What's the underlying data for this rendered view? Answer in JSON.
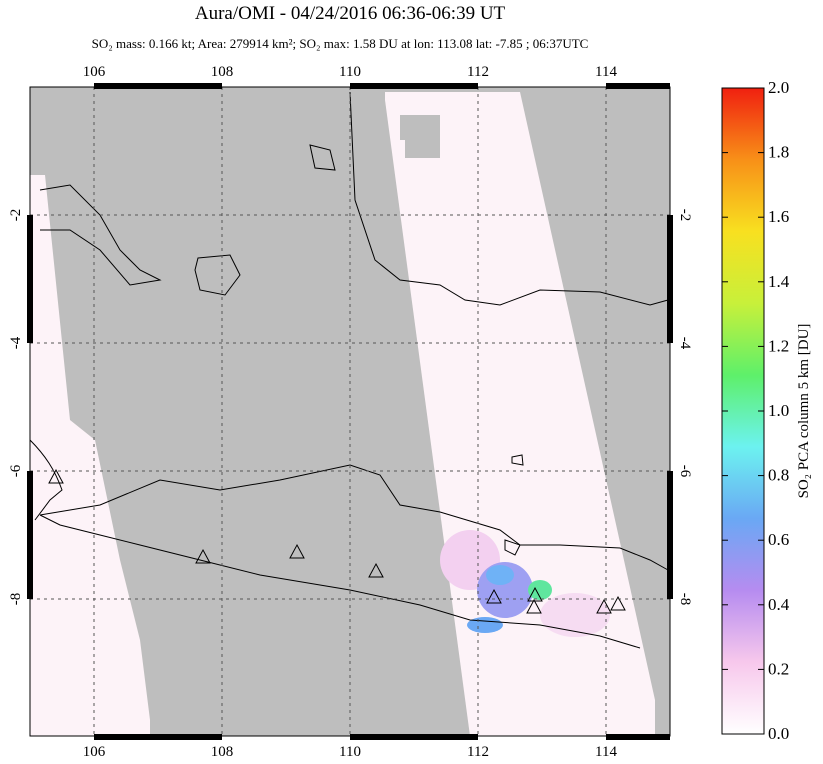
{
  "title": "Aura/OMI - 04/24/2016 06:36-06:39 UT",
  "subtitle": "SO₂ mass: 0.166 kt; Area: 279914 km²; SO₂ max: 1.58 DU at lon: 113.08 lat: -7.85 ; 06:37UTC",
  "map": {
    "xlim": [
      105,
      115
    ],
    "ylim": [
      -10.14,
      0
    ],
    "xticks": [
      106,
      108,
      110,
      112,
      114
    ],
    "yticks": [
      -2,
      -4,
      -6,
      -8
    ]
  },
  "colorbar": {
    "label": "SO₂ PCA column 5 km [DU]",
    "lim": [
      0,
      2
    ],
    "ticks": [
      {
        "value": 0,
        "label": "0.0"
      },
      {
        "value": 0.2,
        "label": "0.2"
      },
      {
        "value": 0.4,
        "label": "0.4"
      },
      {
        "value": 0.6,
        "label": "0.6"
      },
      {
        "value": 0.8,
        "label": "0.8"
      },
      {
        "value": 1,
        "label": "1.0"
      },
      {
        "value": 1.2,
        "label": "1.2"
      },
      {
        "value": 1.4,
        "label": "1.4"
      },
      {
        "value": 1.6,
        "label": "1.6"
      },
      {
        "value": 1.8,
        "label": "1.8"
      },
      {
        "value": 2,
        "label": "2.0"
      }
    ],
    "colors": [
      "#ffffff",
      "#f7c8ec",
      "#b68cf0",
      "#6aa8f4",
      "#6cf2f0",
      "#5ef06a",
      "#c8f03a",
      "#f8e020",
      "#f89018",
      "#f02010"
    ]
  }
}
